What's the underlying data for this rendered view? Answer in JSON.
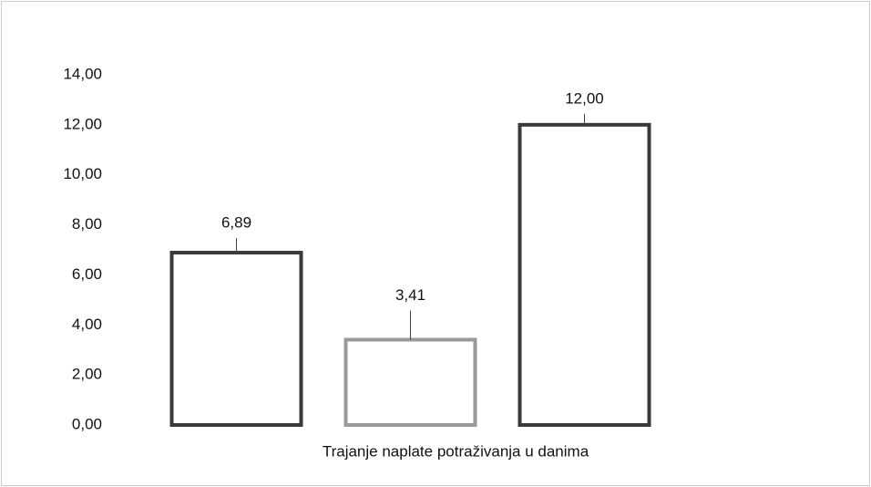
{
  "chart_data": {
    "type": "bar",
    "x_label": "Trajanje naplate potraživanja u danima",
    "categories": [
      null,
      null,
      null
    ],
    "values": [
      6.89,
      3.41,
      12
    ],
    "value_labels": [
      "6,89",
      "3,41",
      "12,00"
    ],
    "colors": [
      "#3a3a3a",
      "#9a9a9a",
      "#3a3a3a"
    ],
    "ylim": [
      0,
      14
    ],
    "yticks": [
      {
        "value": 0,
        "label": "0,00"
      },
      {
        "value": 2,
        "label": "2,00"
      },
      {
        "value": 4,
        "label": "4,00"
      },
      {
        "value": 6,
        "label": "6,00"
      },
      {
        "value": 8,
        "label": "8,00"
      },
      {
        "value": 10,
        "label": "10,00"
      },
      {
        "value": 12,
        "label": "12,00"
      },
      {
        "value": 14,
        "label": "14,00"
      }
    ],
    "grid": false
  }
}
